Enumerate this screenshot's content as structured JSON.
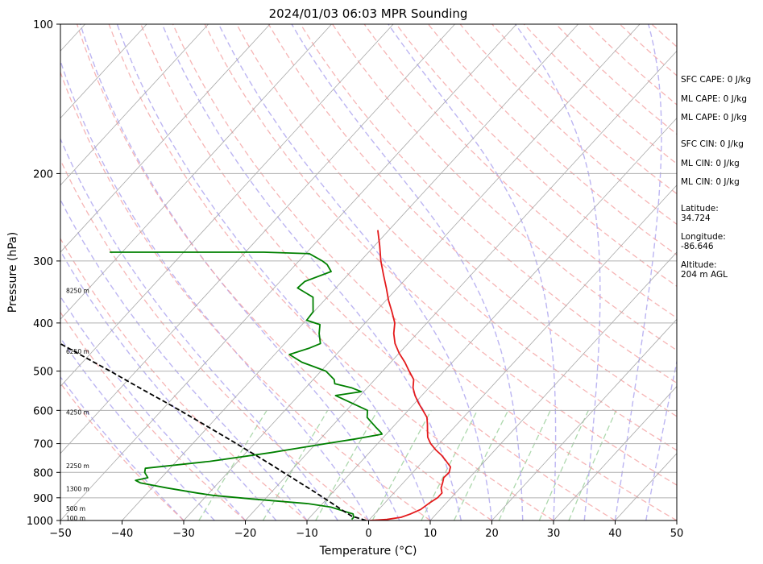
{
  "chart_data": {
    "type": "skew-t log-p sounding",
    "title": "2024/01/03 06:03 MPR Sounding",
    "xlabel": "Temperature (°C)",
    "ylabel": "Pressure (hPa)",
    "xlim": [
      -50,
      50
    ],
    "ylim": [
      1000,
      100
    ],
    "y_scale": "log",
    "skew_degrees_per_decade": 74,
    "x_ticks": [
      "−50",
      "−40",
      "−30",
      "−20",
      "−10",
      "0",
      "10",
      "20",
      "30",
      "40",
      "50"
    ],
    "y_ticks": [
      "100",
      "200",
      "300",
      "400",
      "500",
      "600",
      "700",
      "800",
      "900",
      "1000"
    ],
    "grid": true,
    "background_lines": [
      "gray isotherms",
      "red dashed dry adiabats",
      "blue dashed moist adiabats",
      "green dashed mixing ratio lines"
    ],
    "height_labels": [
      {
        "text": "100 m",
        "p": 988
      },
      {
        "text": "500 m",
        "p": 945
      },
      {
        "text": "1300 m",
        "p": 862
      },
      {
        "text": "2250 m",
        "p": 776
      },
      {
        "text": "4250 m",
        "p": 605
      },
      {
        "text": "6250 m",
        "p": 456
      },
      {
        "text": "8250 m",
        "p": 344
      }
    ],
    "series": [
      {
        "name": "temperature",
        "color": "#e41a1c",
        "points": [
          [
            1000,
            0.2
          ],
          [
            995,
            2.8
          ],
          [
            985,
            4.8
          ],
          [
            970,
            5.8
          ],
          [
            950,
            6.8
          ],
          [
            920,
            7.3
          ],
          [
            900,
            7.8
          ],
          [
            880,
            7.8
          ],
          [
            860,
            6.9
          ],
          [
            840,
            6.4
          ],
          [
            820,
            5.8
          ],
          [
            800,
            5.9
          ],
          [
            780,
            5.3
          ],
          [
            760,
            3.8
          ],
          [
            740,
            2.2
          ],
          [
            720,
            0.3
          ],
          [
            700,
            -1.4
          ],
          [
            680,
            -2.8
          ],
          [
            660,
            -3.8
          ],
          [
            640,
            -4.8
          ],
          [
            620,
            -5.9
          ],
          [
            600,
            -7.6
          ],
          [
            580,
            -9.4
          ],
          [
            560,
            -11.1
          ],
          [
            540,
            -12.6
          ],
          [
            520,
            -13.7
          ],
          [
            500,
            -15.7
          ],
          [
            480,
            -17.7
          ],
          [
            460,
            -20.0
          ],
          [
            440,
            -22.1
          ],
          [
            420,
            -23.8
          ],
          [
            400,
            -25.2
          ],
          [
            380,
            -27.3
          ],
          [
            360,
            -29.6
          ],
          [
            340,
            -31.8
          ],
          [
            320,
            -34.2
          ],
          [
            300,
            -36.7
          ],
          [
            280,
            -39.1
          ],
          [
            260,
            -41.8
          ]
        ]
      },
      {
        "name": "dewpoint",
        "color": "#008000",
        "points": [
          [
            995,
            -2.9
          ],
          [
            985,
            -2.9
          ],
          [
            970,
            -3.5
          ],
          [
            955,
            -5.8
          ],
          [
            940,
            -8.1
          ],
          [
            925,
            -12.3
          ],
          [
            905,
            -22.1
          ],
          [
            890,
            -29.0
          ],
          [
            880,
            -32.0
          ],
          [
            860,
            -37.5
          ],
          [
            840,
            -42.6
          ],
          [
            830,
            -43.8
          ],
          [
            820,
            -42.2
          ],
          [
            800,
            -43.5
          ],
          [
            785,
            -44.0
          ],
          [
            760,
            -34.6
          ],
          [
            730,
            -26.0
          ],
          [
            700,
            -18.4
          ],
          [
            685,
            -14.3
          ],
          [
            670,
            -10.7
          ],
          [
            665,
            -11.1
          ],
          [
            650,
            -12.6
          ],
          [
            620,
            -15.6
          ],
          [
            600,
            -16.6
          ],
          [
            560,
            -24.0
          ],
          [
            550,
            -20.4
          ],
          [
            540,
            -22.6
          ],
          [
            530,
            -25.9
          ],
          [
            520,
            -26.6
          ],
          [
            500,
            -29.2
          ],
          [
            480,
            -34.4
          ],
          [
            463,
            -37.6
          ],
          [
            450,
            -35.4
          ],
          [
            440,
            -34.2
          ],
          [
            420,
            -35.9
          ],
          [
            403,
            -37.1
          ],
          [
            395,
            -39.9
          ],
          [
            380,
            -40.1
          ],
          [
            355,
            -42.3
          ],
          [
            340,
            -46.2
          ],
          [
            330,
            -46.0
          ],
          [
            315,
            -43.2
          ],
          [
            305,
            -44.9
          ],
          [
            300,
            -46.2
          ],
          [
            290,
            -49.4
          ],
          [
            288,
            -57.0
          ],
          [
            288,
            -82.0
          ]
        ]
      },
      {
        "name": "parcel path",
        "color": "#000000",
        "dashed": true,
        "points": [
          [
            1000,
            -0.4
          ],
          [
            980,
            -3.4
          ],
          [
            960,
            -5.2
          ],
          [
            940,
            -7.0
          ],
          [
            920,
            -8.8
          ],
          [
            900,
            -10.7
          ],
          [
            880,
            -12.6
          ],
          [
            860,
            -14.6
          ],
          [
            840,
            -16.7
          ],
          [
            820,
            -18.8
          ],
          [
            800,
            -21.0
          ],
          [
            780,
            -23.2
          ],
          [
            760,
            -25.5
          ],
          [
            740,
            -27.9
          ],
          [
            720,
            -30.4
          ],
          [
            700,
            -32.9
          ],
          [
            660,
            -38.3
          ],
          [
            620,
            -44.0
          ],
          [
            580,
            -50.2
          ],
          [
            540,
            -57.0
          ],
          [
            500,
            -64.2
          ],
          [
            460,
            -72.2
          ],
          [
            420,
            -80.9
          ],
          [
            380,
            -90.5
          ],
          [
            340,
            -101.3
          ],
          [
            300,
            -113.5
          ]
        ]
      }
    ],
    "side_panel": [
      "SFC CAPE: 0 J/kg",
      "ML CAPE: 0 J/kg",
      "ML CAPE: 0 J/kg",
      "SFC CIN: 0 J/kg",
      "ML CIN: 0 J/kg",
      "ML CIN: 0 J/kg",
      "Latitude:",
      "34.724",
      "Longitude:",
      "-86.646",
      "Altitude:",
      "204 m AGL"
    ]
  }
}
